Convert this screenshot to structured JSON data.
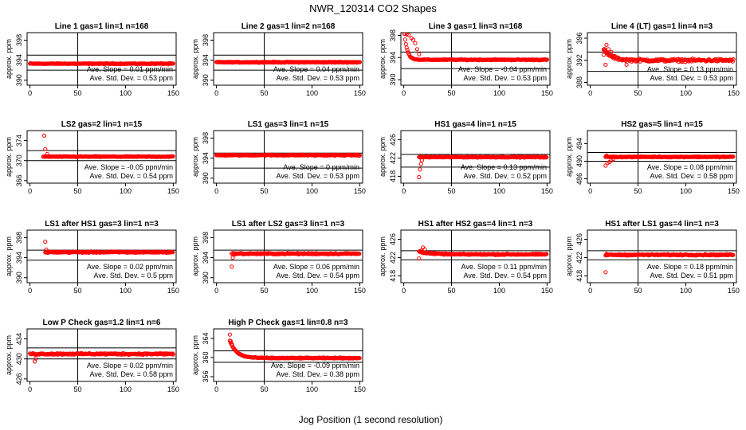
{
  "title": "NWR_120314  CO2 Shapes",
  "xlabel": "Jog Position (1 second resolution)",
  "chart_data": [
    {
      "type": "scatter",
      "title": "Line 1 gas=1 lin=1 n=168",
      "ylabel": "approx. ppm",
      "xlim": [
        -3,
        153
      ],
      "ylim": [
        389,
        399.5
      ],
      "xticks": [
        0,
        50,
        100,
        150
      ],
      "yticks": [
        390,
        394,
        398
      ],
      "vline": 50,
      "hlines": [
        392,
        395
      ],
      "slope_text": "Ave. Slope = 0.01  ppm/min",
      "std_text": "Ave. Std. Dev. = 0.53  ppm",
      "shape": {
        "start": 0,
        "end": 150,
        "base": 393.3,
        "noise": 0.12,
        "spikes": []
      }
    },
    {
      "type": "scatter",
      "title": "Line 2 gas=1 lin=2 n=168",
      "ylabel": "approx. ppm",
      "xlim": [
        -3,
        153
      ],
      "ylim": [
        389,
        399.5
      ],
      "xticks": [
        0,
        50,
        100,
        150
      ],
      "yticks": [
        390,
        394,
        398
      ],
      "vline": 50,
      "hlines": [
        392,
        395
      ],
      "slope_text": "Ave. Slope = 0.04  ppm/min",
      "std_text": "Ave. Std. Dev. = 0.53  ppm",
      "shape": {
        "start": 0,
        "end": 150,
        "base": 393.6,
        "noise": 0.12,
        "spikes": []
      }
    },
    {
      "type": "scatter",
      "title": "Line 3 gas=1 lin=3 n=168",
      "ylabel": "approx. ppm",
      "xlim": [
        -3,
        153
      ],
      "ylim": [
        389,
        398.5
      ],
      "xticks": [
        0,
        50,
        100,
        150
      ],
      "yticks": [
        390,
        394,
        398
      ],
      "vline": 50,
      "hlines": [
        392,
        395
      ],
      "slope_text": "Ave. Slope = -0.04  ppm/min",
      "std_text": "Ave. Std. Dev. = 0.53  ppm",
      "shape": {
        "start": 0,
        "end": 150,
        "base": 393.6,
        "noise": 0.12,
        "decay_amp": 6,
        "decay_tau": 3,
        "spikes": [
          [
            1,
            398.3
          ],
          [
            3,
            398.2
          ],
          [
            5,
            398.1
          ],
          [
            8,
            397.5
          ],
          [
            10,
            397.2
          ],
          [
            12,
            396.6
          ],
          [
            14,
            395.5
          ],
          [
            16,
            394.6
          ]
        ]
      }
    },
    {
      "type": "scatter",
      "title": "Line 4 (LT) gas=1 lin=4 n=3",
      "ylabel": "approx. ppm",
      "xlim": [
        -3,
        153
      ],
      "ylim": [
        387.5,
        397
      ],
      "xticks": [
        0,
        50,
        100,
        150
      ],
      "yticks": [
        388,
        392,
        396
      ],
      "vline": 50,
      "hlines": [
        390,
        393.5
      ],
      "slope_text": "Ave. Slope = 0.13  ppm/min",
      "std_text": "Ave. Std. Dev. = 0.53  ppm",
      "shape": {
        "start": 14,
        "end": 150,
        "base": 392,
        "noise": 0.35,
        "decay_amp": 2,
        "decay_tau": 8,
        "spikes": [
          [
            14,
            393
          ],
          [
            15,
            393.8
          ],
          [
            17,
            394.8
          ],
          [
            19,
            394
          ],
          [
            22,
            393.5
          ],
          [
            25,
            392.8
          ],
          [
            16,
            391.2
          ],
          [
            38,
            391.2
          ]
        ]
      }
    },
    {
      "type": "scatter",
      "title": "LS2 gas=2 lin=1 n=15",
      "ylabel": "approx. ppm",
      "xlim": [
        -3,
        153
      ],
      "ylim": [
        365.5,
        376
      ],
      "xticks": [
        0,
        50,
        100,
        150
      ],
      "yticks": [
        366,
        370,
        374
      ],
      "vline": 50,
      "hlines": [
        370,
        372
      ],
      "slope_text": "Ave. Slope = -0.05  ppm/min",
      "std_text": "Ave. Std. Dev. = 0.54  ppm",
      "shape": {
        "start": 14,
        "end": 150,
        "base": 370.8,
        "noise": 0.12,
        "spikes": [
          [
            15,
            375
          ],
          [
            16,
            372.3
          ],
          [
            18,
            371.3
          ]
        ]
      }
    },
    {
      "type": "scatter",
      "title": "LS1 gas=3 lin=1 n=15",
      "ylabel": "approx. ppm",
      "xlim": [
        -3,
        153
      ],
      "ylim": [
        389,
        399.5
      ],
      "xticks": [
        0,
        50,
        100,
        150
      ],
      "yticks": [
        390,
        394,
        398
      ],
      "vline": 50,
      "hlines": [
        392,
        395
      ],
      "slope_text": "Ave. Slope = 0  ppm/min",
      "std_text": "Ave. Std. Dev. = 0.53  ppm",
      "shape": {
        "start": 0,
        "end": 150,
        "base": 394.6,
        "noise": 0.15,
        "spikes": []
      }
    },
    {
      "type": "scatter",
      "title": "HS1 gas=4 lin=1 n=15",
      "ylabel": "approx. ppm",
      "xlim": [
        -3,
        153
      ],
      "ylim": [
        416.5,
        428
      ],
      "xticks": [
        0,
        50,
        100,
        150
      ],
      "yticks": [
        418,
        422,
        426
      ],
      "vline": 50,
      "hlines": [
        420,
        422.8
      ],
      "slope_text": "Ave. Slope = 0.13  ppm/min",
      "std_text": "Ave. Std. Dev. = 0.52  ppm",
      "shape": {
        "start": 16,
        "end": 150,
        "base": 422.2,
        "noise": 0.14,
        "spikes": [
          [
            16,
            417.8
          ],
          [
            17,
            419.5
          ],
          [
            18,
            420.7
          ],
          [
            19,
            421.5
          ]
        ]
      }
    },
    {
      "type": "scatter",
      "title": "HS2 gas=5 lin=1 n=15",
      "ylabel": "approx. ppm",
      "xlim": [
        -3,
        153
      ],
      "ylim": [
        485,
        497
      ],
      "xticks": [
        0,
        50,
        100,
        150
      ],
      "yticks": [
        486,
        490,
        494
      ],
      "vline": 50,
      "hlines": [
        490,
        492
      ],
      "slope_text": "Ave. Slope = 0.08  ppm/min",
      "std_text": "Ave. Std. Dev. = 0.58  ppm",
      "shape": {
        "start": 16,
        "end": 150,
        "base": 491,
        "noise": 0.15,
        "spikes": [
          [
            16,
            489
          ],
          [
            17,
            491.3
          ],
          [
            18,
            489.6
          ],
          [
            20,
            489.8
          ],
          [
            22,
            490.2
          ],
          [
            24,
            490.5
          ]
        ]
      }
    },
    {
      "type": "scatter",
      "title": "LS1 after HS1 gas=3 lin=1 n=3",
      "ylabel": "approx. ppm",
      "xlim": [
        -3,
        153
      ],
      "ylim": [
        389,
        399.5
      ],
      "xticks": [
        0,
        50,
        100,
        150
      ],
      "yticks": [
        390,
        394,
        398
      ],
      "vline": 50,
      "hlines": [
        393.5,
        395.5
      ],
      "slope_text": "Ave. Slope = 0.02  ppm/min",
      "std_text": "Ave. Std. Dev. = 0.5  ppm",
      "shape": {
        "start": 16,
        "end": 150,
        "base": 395.1,
        "noise": 0.18,
        "spikes": [
          [
            16,
            397.2
          ],
          [
            17,
            395.6
          ]
        ]
      }
    },
    {
      "type": "scatter",
      "title": "LS1 after LS2 gas=3 lin=1 n=3",
      "ylabel": "approx. ppm",
      "xlim": [
        -3,
        153
      ],
      "ylim": [
        389,
        399.5
      ],
      "xticks": [
        0,
        50,
        100,
        150
      ],
      "yticks": [
        390,
        394,
        398
      ],
      "vline": 50,
      "hlines": [
        393.5,
        395.5
      ],
      "slope_text": "Ave. Slope = 0.06  ppm/min",
      "std_text": "Ave. Std. Dev. = 0.54  ppm",
      "shape": {
        "start": 16,
        "end": 150,
        "base": 394.8,
        "noise": 0.2,
        "spikes": [
          [
            16,
            392.2
          ],
          [
            17,
            394
          ]
        ]
      }
    },
    {
      "type": "scatter",
      "title": "HS1 after HS2 gas=4 lin=1 n=3",
      "ylabel": "approx. ppm",
      "xlim": [
        -3,
        153
      ],
      "ylim": [
        416.5,
        428
      ],
      "xticks": [
        0,
        50,
        100,
        150
      ],
      "yticks": [
        418,
        422,
        426
      ],
      "vline": 50,
      "hlines": [
        421.5,
        423.5
      ],
      "slope_text": "Ave. Slope = 0.11  ppm/min",
      "std_text": "Ave. Std. Dev. = 0.54  ppm",
      "shape": {
        "start": 16,
        "end": 150,
        "base": 422.7,
        "noise": 0.18,
        "decay_amp": 0.6,
        "decay_tau": 12,
        "spikes": [
          [
            16,
            421.8
          ],
          [
            18,
            423.5
          ],
          [
            20,
            424.2
          ],
          [
            22,
            423.8
          ]
        ]
      }
    },
    {
      "type": "scatter",
      "title": "HS1 after LS1 gas=4 lin=1 n=3",
      "ylabel": "approx. ppm",
      "xlim": [
        -3,
        153
      ],
      "ylim": [
        416.5,
        428
      ],
      "xticks": [
        0,
        50,
        100,
        150
      ],
      "yticks": [
        418,
        422,
        426
      ],
      "vline": 50,
      "hlines": [
        421.5,
        423.5
      ],
      "slope_text": "Ave. Slope = 0.18  ppm/min",
      "std_text": "Ave. Std. Dev. = 0.51  ppm",
      "shape": {
        "start": 16,
        "end": 150,
        "base": 422.6,
        "noise": 0.2,
        "spikes": [
          [
            16,
            418.8
          ],
          [
            17,
            422.8
          ]
        ]
      }
    },
    {
      "type": "scatter",
      "title": "Low P Check gas=1.2 lin=1 n=6",
      "ylabel": "approx. ppm",
      "xlim": [
        -3,
        153
      ],
      "ylim": [
        425.5,
        436
      ],
      "xticks": [
        0,
        50,
        100,
        150
      ],
      "yticks": [
        426,
        430,
        434
      ],
      "vline": 50,
      "hlines": [
        430,
        432.2
      ],
      "slope_text": "Ave. Slope = 0.02  ppm/min",
      "std_text": "Ave. Std. Dev. = 0.58  ppm",
      "shape": {
        "start": 0,
        "end": 150,
        "base": 431,
        "noise": 0.22,
        "spikes": [
          [
            5,
            429.5
          ],
          [
            6,
            430.1
          ]
        ]
      }
    },
    {
      "type": "scatter",
      "title": "High P Check gas=1 lin=0.8 n=3",
      "ylabel": "approx. ppm",
      "xlim": [
        -3,
        153
      ],
      "ylim": [
        355,
        366
      ],
      "xticks": [
        0,
        50,
        100,
        150
      ],
      "yticks": [
        356,
        360,
        364
      ],
      "vline": 50,
      "hlines": [
        359,
        361.4
      ],
      "slope_text": "Ave. Slope = -0.09  ppm/min",
      "std_text": "Ave. Std. Dev. = 0.38  ppm",
      "shape": {
        "start": 14,
        "end": 150,
        "base": 359.9,
        "noise": 0.14,
        "decay_amp": 3.6,
        "decay_tau": 7,
        "spikes": [
          [
            14,
            364.8
          ],
          [
            15,
            363.4
          ],
          [
            16,
            362.8
          ]
        ]
      }
    }
  ]
}
